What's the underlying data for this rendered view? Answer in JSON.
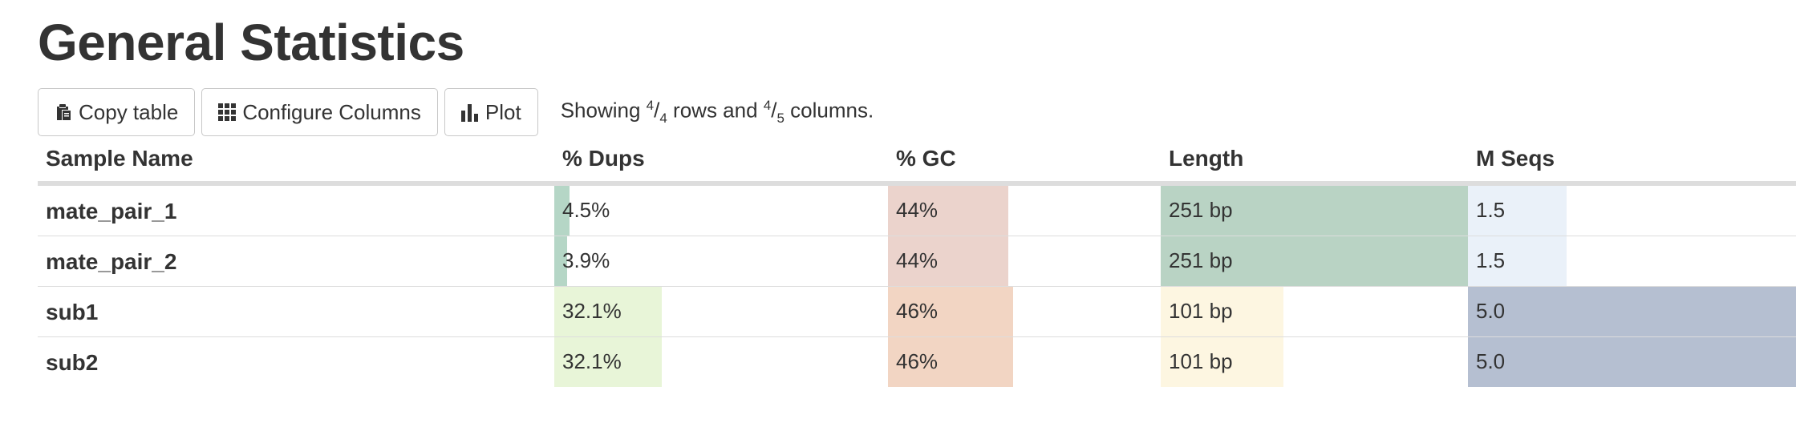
{
  "title": "General Statistics",
  "toolbar": {
    "copy_label": "Copy table",
    "configure_label": "Configure Columns",
    "plot_label": "Plot",
    "showing_prefix": "Showing ",
    "rows_shown": "4",
    "rows_total": "4",
    "rows_word": " rows and ",
    "cols_shown": "4",
    "cols_total": "5",
    "cols_word": " columns."
  },
  "table": {
    "headers": [
      "Sample Name",
      "% Dups",
      "% GC",
      "Length",
      "M Seqs"
    ],
    "rows": [
      {
        "sample": "mate_pair_1",
        "dups": "4.5%",
        "gc": "44%",
        "length": "251 bp",
        "mseqs": "1.5"
      },
      {
        "sample": "mate_pair_2",
        "dups": "3.9%",
        "gc": "44%",
        "length": "251 bp",
        "mseqs": "1.5"
      },
      {
        "sample": "sub1",
        "dups": "32.1%",
        "gc": "46%",
        "length": "101 bp",
        "mseqs": "5.0"
      },
      {
        "sample": "sub2",
        "dups": "32.1%",
        "gc": "46%",
        "length": "101 bp",
        "mseqs": "5.0"
      }
    ],
    "bar_fill": {
      "dups": [
        0.045,
        0.039,
        0.321,
        0.321
      ],
      "gc": [
        0.44,
        0.44,
        0.46,
        0.46
      ],
      "length": [
        1.0,
        1.0,
        0.4,
        0.4
      ],
      "mseqs": [
        0.3,
        0.3,
        1.0,
        1.0
      ]
    },
    "bar_colors": {
      "dups": [
        "#b5d6c6",
        "#b5d6c6",
        "#e8f5d8",
        "#e8f5d8"
      ],
      "gc": [
        "#ebd3cc",
        "#ebd3cc",
        "#f2d5c3",
        "#f2d5c3"
      ],
      "length": [
        "#b9d3c4",
        "#b9d3c4",
        "#fdf6e1",
        "#fdf6e1"
      ],
      "mseqs": [
        "#eaf1f9",
        "#eaf1f9",
        "#b5bfd1",
        "#b5bfd1"
      ]
    }
  }
}
